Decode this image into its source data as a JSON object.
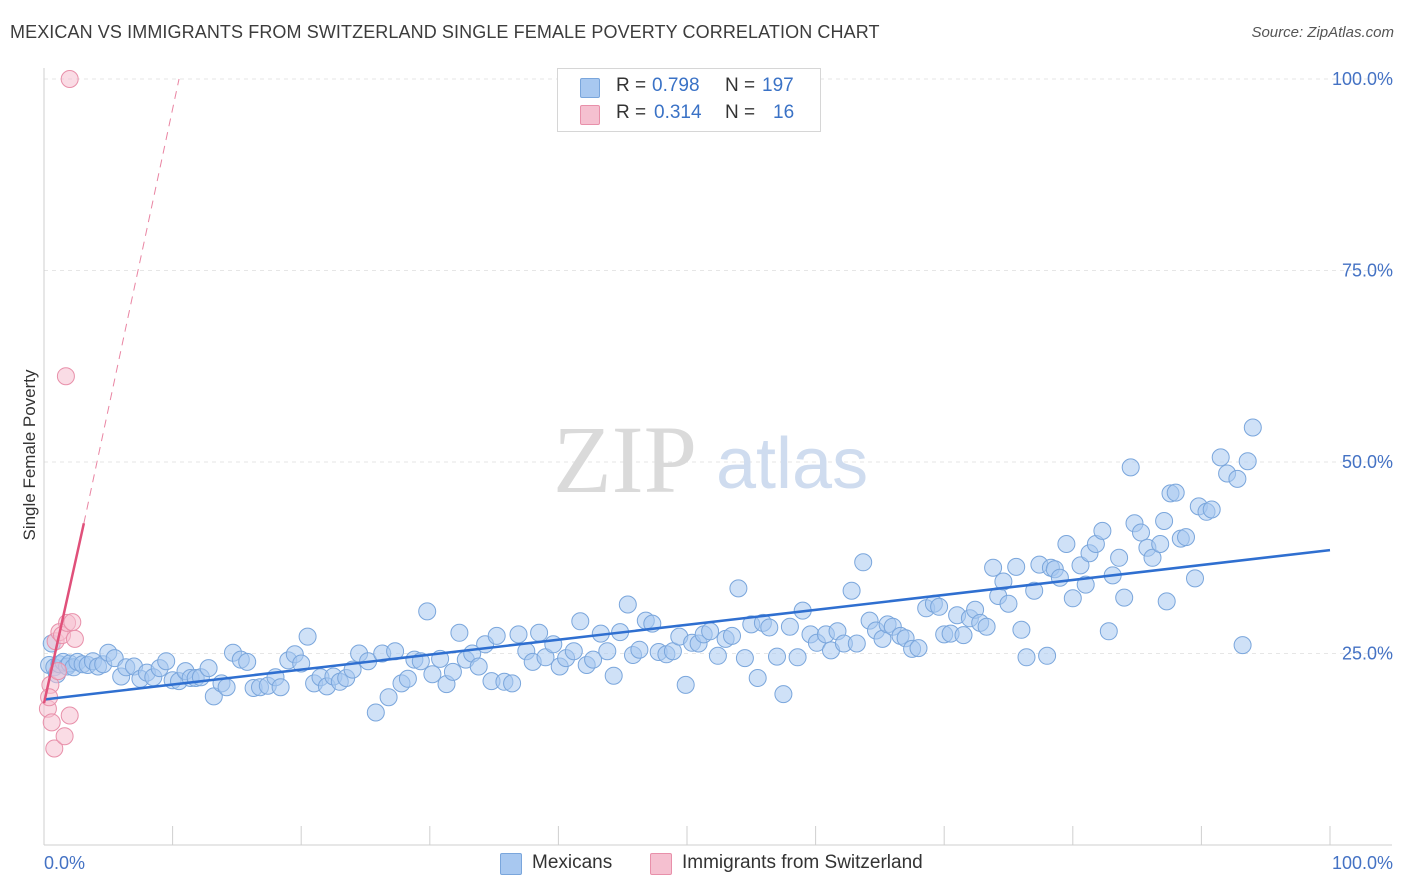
{
  "header": {
    "title": "MEXICAN VS IMMIGRANTS FROM SWITZERLAND SINGLE FEMALE POVERTY CORRELATION CHART",
    "source": "Source: ZipAtlas.com"
  },
  "watermark": {
    "part1": "ZIP",
    "part2": "atlas"
  },
  "legend_top": {
    "rows": [
      {
        "r_label": "R =",
        "r_value": "0.798",
        "n_label": "N =",
        "n_value": "197",
        "color": "#a8c8f0"
      },
      {
        "r_label": "R =",
        "r_value": "0.314",
        "n_label": "N =",
        "n_value": "16",
        "color": "#f5b8c8"
      }
    ]
  },
  "legend_bottom": {
    "items": [
      {
        "label": "Mexicans",
        "color": "#a8c8f0"
      },
      {
        "label": "Immigrants from Switzerland",
        "color": "#f5b8c8"
      }
    ]
  },
  "colors": {
    "blue_fill": "#a8c8f0",
    "blue_stroke": "#7aa6dc",
    "blue_line": "#2f6fd0",
    "pink_fill": "#f5c0d0",
    "pink_stroke": "#e890aa",
    "pink_line": "#e0507a",
    "grid": "#e6e6e6",
    "axis_label": "#4472c4"
  },
  "chart_data": {
    "type": "scatter",
    "title": "MEXICAN VS IMMIGRANTS FROM SWITZERLAND SINGLE FEMALE POVERTY CORRELATION CHART",
    "xlabel": "",
    "ylabel": "Single Female Poverty",
    "xlim": [
      0,
      100
    ],
    "ylim": [
      0,
      100
    ],
    "x_tick_labels": [
      "0.0%",
      "100.0%"
    ],
    "y_tick_labels": [
      "25.0%",
      "50.0%",
      "75.0%",
      "100.0%"
    ],
    "y_ticks": [
      25,
      50,
      75,
      100
    ],
    "grid": true,
    "legend_position": "top-center",
    "series": [
      {
        "name": "Mexicans",
        "R": 0.798,
        "N": 197,
        "trend": {
          "x": [
            0,
            100
          ],
          "y": [
            19.0,
            38.5
          ],
          "style": "solid"
        },
        "points": [
          [
            0.4,
            23.5
          ],
          [
            0.6,
            26.3
          ],
          [
            0.8,
            23.2
          ],
          [
            1.0,
            22.3
          ],
          [
            1.2,
            23.6
          ],
          [
            1.5,
            23.9
          ],
          [
            1.8,
            23.3
          ],
          [
            2.0,
            23.7
          ],
          [
            2.3,
            23.2
          ],
          [
            2.6,
            23.9
          ],
          [
            3.0,
            23.6
          ],
          [
            3.4,
            23.5
          ],
          [
            3.8,
            24.0
          ],
          [
            4.2,
            23.3
          ],
          [
            4.6,
            23.6
          ],
          [
            5.0,
            25.1
          ],
          [
            5.5,
            24.4
          ],
          [
            6.0,
            22.0
          ],
          [
            6.4,
            23.2
          ],
          [
            7.0,
            23.3
          ],
          [
            7.5,
            21.7
          ],
          [
            8.0,
            22.5
          ],
          [
            8.5,
            21.9
          ],
          [
            9.0,
            23.1
          ],
          [
            9.5,
            24.0
          ],
          [
            10.0,
            21.5
          ],
          [
            10.5,
            21.4
          ],
          [
            11.0,
            22.7
          ],
          [
            11.4,
            21.8
          ],
          [
            11.8,
            21.8
          ],
          [
            12.2,
            21.9
          ],
          [
            12.8,
            23.1
          ],
          [
            13.2,
            19.4
          ],
          [
            13.8,
            21.1
          ],
          [
            14.2,
            20.6
          ],
          [
            14.7,
            25.1
          ],
          [
            15.3,
            24.2
          ],
          [
            15.8,
            23.9
          ],
          [
            16.3,
            20.5
          ],
          [
            16.8,
            20.6
          ],
          [
            17.4,
            20.8
          ],
          [
            18.0,
            21.9
          ],
          [
            18.4,
            20.6
          ],
          [
            19.0,
            24.1
          ],
          [
            19.5,
            24.9
          ],
          [
            20.0,
            23.7
          ],
          [
            20.5,
            27.2
          ],
          [
            21.0,
            21.1
          ],
          [
            21.5,
            21.9
          ],
          [
            22.0,
            20.7
          ],
          [
            22.5,
            22.0
          ],
          [
            23.0,
            21.3
          ],
          [
            23.5,
            21.8
          ],
          [
            24.0,
            22.9
          ],
          [
            24.5,
            25.0
          ],
          [
            25.2,
            24.0
          ],
          [
            25.8,
            17.3
          ],
          [
            26.3,
            25.0
          ],
          [
            26.8,
            19.3
          ],
          [
            27.3,
            25.3
          ],
          [
            27.8,
            21.1
          ],
          [
            28.3,
            21.7
          ],
          [
            28.8,
            24.2
          ],
          [
            29.3,
            24.0
          ],
          [
            29.8,
            30.5
          ],
          [
            30.2,
            22.3
          ],
          [
            30.8,
            24.3
          ],
          [
            31.3,
            21.0
          ],
          [
            31.8,
            22.6
          ],
          [
            32.3,
            27.7
          ],
          [
            32.8,
            24.2
          ],
          [
            33.3,
            25.0
          ],
          [
            33.8,
            23.3
          ],
          [
            34.3,
            26.2
          ],
          [
            34.8,
            21.4
          ],
          [
            35.2,
            27.3
          ],
          [
            35.8,
            21.3
          ],
          [
            36.4,
            21.1
          ],
          [
            36.9,
            27.5
          ],
          [
            37.5,
            25.3
          ],
          [
            38.0,
            23.9
          ],
          [
            38.5,
            27.7
          ],
          [
            39.0,
            24.5
          ],
          [
            39.6,
            26.2
          ],
          [
            40.1,
            23.3
          ],
          [
            40.6,
            24.4
          ],
          [
            41.2,
            25.3
          ],
          [
            41.7,
            29.2
          ],
          [
            42.2,
            23.5
          ],
          [
            42.7,
            24.2
          ],
          [
            43.3,
            27.6
          ],
          [
            43.8,
            25.3
          ],
          [
            44.3,
            22.1
          ],
          [
            44.8,
            27.8
          ],
          [
            45.4,
            31.4
          ],
          [
            45.8,
            24.8
          ],
          [
            46.3,
            25.5
          ],
          [
            46.8,
            29.3
          ],
          [
            47.3,
            28.9
          ],
          [
            47.8,
            25.2
          ],
          [
            48.4,
            24.9
          ],
          [
            48.9,
            25.3
          ],
          [
            49.4,
            27.2
          ],
          [
            49.9,
            20.9
          ],
          [
            50.4,
            26.4
          ],
          [
            50.9,
            26.3
          ],
          [
            51.3,
            27.5
          ],
          [
            51.8,
            27.9
          ],
          [
            52.4,
            24.7
          ],
          [
            53.0,
            26.9
          ],
          [
            53.5,
            27.3
          ],
          [
            54.0,
            33.5
          ],
          [
            54.5,
            24.4
          ],
          [
            55.0,
            28.8
          ],
          [
            55.5,
            21.8
          ],
          [
            55.9,
            29.0
          ],
          [
            56.4,
            28.4
          ],
          [
            57.0,
            24.6
          ],
          [
            57.5,
            19.7
          ],
          [
            58.0,
            28.5
          ],
          [
            58.6,
            24.5
          ],
          [
            59.0,
            30.6
          ],
          [
            59.6,
            27.5
          ],
          [
            60.1,
            26.4
          ],
          [
            60.8,
            27.5
          ],
          [
            61.2,
            25.4
          ],
          [
            61.7,
            27.9
          ],
          [
            62.2,
            26.3
          ],
          [
            62.8,
            33.2
          ],
          [
            63.2,
            26.3
          ],
          [
            63.7,
            36.9
          ],
          [
            64.2,
            29.3
          ],
          [
            64.7,
            28.0
          ],
          [
            65.2,
            26.9
          ],
          [
            65.6,
            28.8
          ],
          [
            66.0,
            28.5
          ],
          [
            66.6,
            27.3
          ],
          [
            67.0,
            27.0
          ],
          [
            67.5,
            25.6
          ],
          [
            68.0,
            25.7
          ],
          [
            68.6,
            30.9
          ],
          [
            69.2,
            31.5
          ],
          [
            69.6,
            31.1
          ],
          [
            70.0,
            27.5
          ],
          [
            70.5,
            27.6
          ],
          [
            71.0,
            30.0
          ],
          [
            71.5,
            27.4
          ],
          [
            72.0,
            29.6
          ],
          [
            72.4,
            30.7
          ],
          [
            72.8,
            29.0
          ],
          [
            73.3,
            28.5
          ],
          [
            73.8,
            36.2
          ],
          [
            74.2,
            32.5
          ],
          [
            74.6,
            34.4
          ],
          [
            75.0,
            31.5
          ],
          [
            75.6,
            36.3
          ],
          [
            76.0,
            28.1
          ],
          [
            76.4,
            24.5
          ],
          [
            77.0,
            33.2
          ],
          [
            77.4,
            36.6
          ],
          [
            78.0,
            24.7
          ],
          [
            78.3,
            36.2
          ],
          [
            78.6,
            36.0
          ],
          [
            79.0,
            34.9
          ],
          [
            79.5,
            39.3
          ],
          [
            80.0,
            32.2
          ],
          [
            80.6,
            36.5
          ],
          [
            81.0,
            34.0
          ],
          [
            81.3,
            38.1
          ],
          [
            81.8,
            39.3
          ],
          [
            82.3,
            41.0
          ],
          [
            82.8,
            27.9
          ],
          [
            83.1,
            35.2
          ],
          [
            83.6,
            37.5
          ],
          [
            84.0,
            32.3
          ],
          [
            84.5,
            49.3
          ],
          [
            84.8,
            42.0
          ],
          [
            85.3,
            40.8
          ],
          [
            85.8,
            38.8
          ],
          [
            86.2,
            37.5
          ],
          [
            86.8,
            39.3
          ],
          [
            87.1,
            42.3
          ],
          [
            87.6,
            45.9
          ],
          [
            88.0,
            46.0
          ],
          [
            88.4,
            40.0
          ],
          [
            88.8,
            40.2
          ],
          [
            89.5,
            34.8
          ],
          [
            89.8,
            44.2
          ],
          [
            90.4,
            43.5
          ],
          [
            90.8,
            43.8
          ],
          [
            91.5,
            50.6
          ],
          [
            92.0,
            48.5
          ],
          [
            92.8,
            47.8
          ],
          [
            93.2,
            26.1
          ],
          [
            93.6,
            50.1
          ],
          [
            94.0,
            54.5
          ],
          [
            87.3,
            31.8
          ]
        ]
      },
      {
        "name": "Immigrants from Switzerland",
        "R": 0.314,
        "N": 16,
        "trend": {
          "x": [
            0,
            3.1
          ],
          "y": [
            18.5,
            42.0
          ],
          "style": "solid",
          "extended_x": [
            3.1,
            10.5
          ],
          "extended_y": [
            42.0,
            100.0
          ],
          "extended_style": "dashed"
        },
        "points": [
          [
            0.3,
            17.8
          ],
          [
            0.5,
            20.9
          ],
          [
            0.6,
            16.0
          ],
          [
            0.8,
            12.6
          ],
          [
            0.9,
            26.6
          ],
          [
            1.1,
            22.7
          ],
          [
            1.2,
            27.8
          ],
          [
            1.4,
            27.4
          ],
          [
            1.6,
            14.2
          ],
          [
            1.8,
            29.0
          ],
          [
            2.0,
            16.9
          ],
          [
            2.2,
            29.1
          ],
          [
            2.4,
            26.9
          ],
          [
            1.7,
            61.2
          ],
          [
            2.0,
            100.0
          ],
          [
            0.4,
            19.3
          ]
        ]
      }
    ]
  }
}
